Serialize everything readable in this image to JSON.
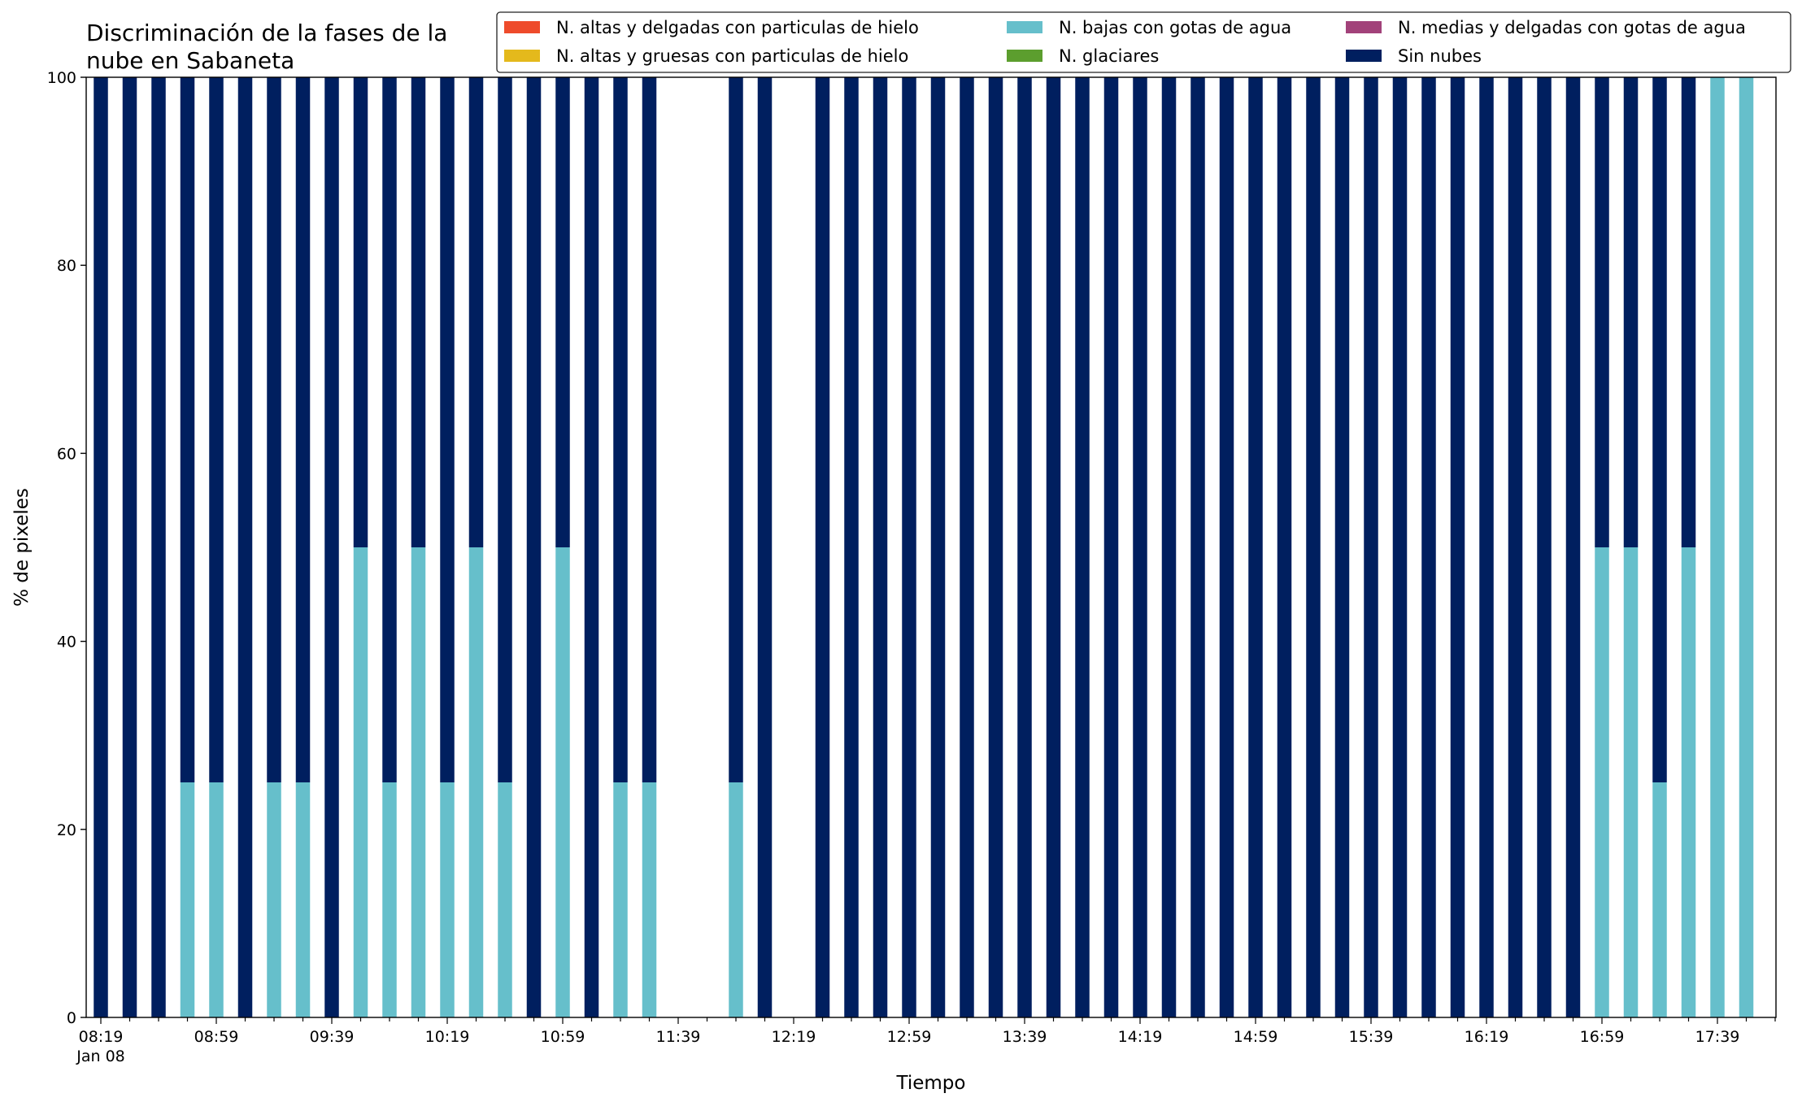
{
  "chart_data": {
    "type": "bar",
    "stacked": true,
    "title": "Discriminación de la fases de la\nnube en Sabaneta",
    "xlabel": "Tiempo",
    "ylabel": "% de pixeles",
    "ylim": [
      0,
      100
    ],
    "yticks": [
      0,
      20,
      40,
      60,
      80,
      100
    ],
    "grid": false,
    "legend_position": "top-right",
    "legend_columns": 3,
    "x": [
      "08:19",
      "08:29",
      "08:39",
      "08:49",
      "08:59",
      "09:09",
      "09:19",
      "09:29",
      "09:39",
      "09:49",
      "09:59",
      "10:09",
      "10:19",
      "10:29",
      "10:39",
      "10:49",
      "10:59",
      "11:09",
      "11:19",
      "11:29",
      "11:39",
      "11:49",
      "11:59",
      "12:09",
      "12:19",
      "12:29",
      "12:39",
      "12:49",
      "12:59",
      "13:09",
      "13:19",
      "13:29",
      "13:39",
      "13:49",
      "13:59",
      "14:09",
      "14:19",
      "14:29",
      "14:39",
      "14:49",
      "14:59",
      "15:09",
      "15:19",
      "15:29",
      "15:39",
      "15:49",
      "15:59",
      "16:09",
      "16:19",
      "16:29",
      "16:39",
      "16:49",
      "16:59",
      "17:09",
      "17:19",
      "17:29",
      "17:39",
      "17:49",
      "17:59"
    ],
    "x_tick_labels": [
      {
        "index": 0,
        "label": "08:19",
        "sublabel": "Jan 08"
      },
      {
        "index": 4,
        "label": "08:59"
      },
      {
        "index": 8,
        "label": "09:39"
      },
      {
        "index": 12,
        "label": "10:19"
      },
      {
        "index": 16,
        "label": "10:59"
      },
      {
        "index": 20,
        "label": "11:39"
      },
      {
        "index": 24,
        "label": "12:19"
      },
      {
        "index": 28,
        "label": "12:59"
      },
      {
        "index": 32,
        "label": "13:39"
      },
      {
        "index": 36,
        "label": "14:19"
      },
      {
        "index": 40,
        "label": "14:59"
      },
      {
        "index": 44,
        "label": "15:39"
      },
      {
        "index": 48,
        "label": "16:19"
      },
      {
        "index": 52,
        "label": "16:59"
      },
      {
        "index": 56,
        "label": "17:39"
      }
    ],
    "series": [
      {
        "name": "N. altas y delgadas con particulas de hielo",
        "color": "#ee4b2b",
        "values": [
          0,
          0,
          0,
          0,
          0,
          0,
          0,
          0,
          0,
          0,
          0,
          0,
          0,
          0,
          0,
          0,
          0,
          0,
          0,
          0,
          0,
          0,
          0,
          0,
          0,
          0,
          0,
          0,
          0,
          0,
          0,
          0,
          0,
          0,
          0,
          0,
          0,
          0,
          0,
          0,
          0,
          0,
          0,
          0,
          0,
          0,
          0,
          0,
          0,
          0,
          0,
          0,
          0,
          0,
          0,
          0,
          0,
          0,
          0
        ]
      },
      {
        "name": "N. altas y gruesas con particulas de hielo",
        "color": "#e4b91c",
        "values": [
          0,
          0,
          0,
          0,
          0,
          0,
          0,
          0,
          0,
          0,
          0,
          0,
          0,
          0,
          0,
          0,
          0,
          0,
          0,
          0,
          0,
          0,
          0,
          0,
          0,
          0,
          0,
          0,
          0,
          0,
          0,
          0,
          0,
          0,
          0,
          0,
          0,
          0,
          0,
          0,
          0,
          0,
          0,
          0,
          0,
          0,
          0,
          0,
          0,
          0,
          0,
          0,
          0,
          0,
          0,
          0,
          0,
          0,
          0
        ]
      },
      {
        "name": "N. bajas con gotas de agua",
        "color": "#66bfcb",
        "values": [
          0,
          0,
          0,
          25,
          25,
          0,
          25,
          25,
          0,
          50,
          25,
          50,
          25,
          50,
          25,
          0,
          50,
          0,
          25,
          25,
          0,
          0,
          25,
          0,
          0,
          0,
          0,
          0,
          0,
          0,
          0,
          0,
          0,
          0,
          0,
          0,
          0,
          0,
          0,
          0,
          0,
          0,
          0,
          0,
          0,
          0,
          0,
          0,
          0,
          0,
          0,
          0,
          50,
          50,
          25,
          50,
          100,
          100,
          0
        ]
      },
      {
        "name": "N. glaciares",
        "color": "#5c9e2e",
        "values": [
          0,
          0,
          0,
          0,
          0,
          0,
          0,
          0,
          0,
          0,
          0,
          0,
          0,
          0,
          0,
          0,
          0,
          0,
          0,
          0,
          0,
          0,
          0,
          0,
          0,
          0,
          0,
          0,
          0,
          0,
          0,
          0,
          0,
          0,
          0,
          0,
          0,
          0,
          0,
          0,
          0,
          0,
          0,
          0,
          0,
          0,
          0,
          0,
          0,
          0,
          0,
          0,
          0,
          0,
          0,
          0,
          0,
          0,
          0
        ]
      },
      {
        "name": "N. medias y delgadas con gotas de agua",
        "color": "#a2427a",
        "values": [
          0,
          0,
          0,
          0,
          0,
          0,
          0,
          0,
          0,
          0,
          0,
          0,
          0,
          0,
          0,
          0,
          0,
          0,
          0,
          0,
          0,
          0,
          0,
          0,
          0,
          0,
          0,
          0,
          0,
          0,
          0,
          0,
          0,
          0,
          0,
          0,
          0,
          0,
          0,
          0,
          0,
          0,
          0,
          0,
          0,
          0,
          0,
          0,
          0,
          0,
          0,
          0,
          0,
          0,
          0,
          0,
          0,
          0,
          0
        ]
      },
      {
        "name": "Sin nubes",
        "color": "#001f5f",
        "values": [
          100,
          100,
          100,
          75,
          75,
          100,
          75,
          75,
          100,
          50,
          75,
          50,
          75,
          50,
          75,
          100,
          50,
          100,
          75,
          75,
          0,
          0,
          75,
          100,
          0,
          100,
          100,
          100,
          100,
          100,
          100,
          100,
          100,
          100,
          100,
          100,
          100,
          100,
          100,
          100,
          100,
          100,
          100,
          100,
          100,
          100,
          100,
          100,
          100,
          100,
          100,
          100,
          50,
          50,
          75,
          50,
          0,
          0,
          0
        ]
      }
    ]
  }
}
